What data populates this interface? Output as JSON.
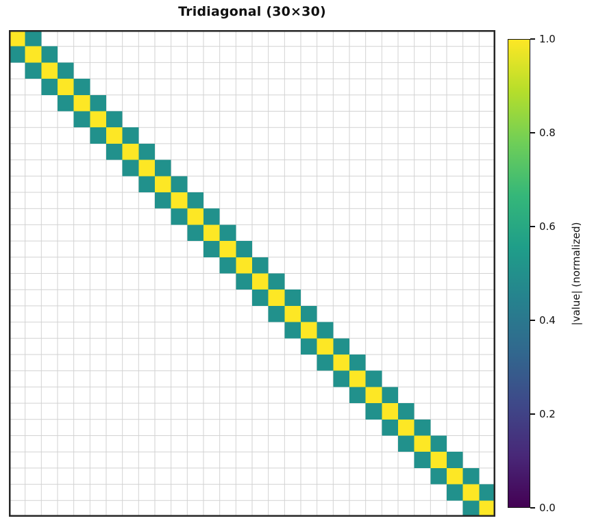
{
  "figure": {
    "background": "#ffffff"
  },
  "chart_data": {
    "type": "heatmap",
    "title": "Tridiagonal (30×30)",
    "matrix_size": 30,
    "pattern": "tridiagonal",
    "diagonal_value": 1.0,
    "off_diagonal_value": 0.5,
    "zero_cells": "masked (shown white)",
    "grid": true,
    "axis_tick_labels": false,
    "colormap": "viridis",
    "colorbar": {
      "label": "|value| (normalized)",
      "ticks": [
        "0.0",
        "0.2",
        "0.4",
        "0.6",
        "0.8",
        "1.0"
      ],
      "tick_values": [
        0.0,
        0.2,
        0.4,
        0.6,
        0.8,
        1.0
      ],
      "range": [
        0.0,
        1.0
      ],
      "position": "right"
    },
    "colors": {
      "diagonal": "#fde725",
      "off_diagonal": "#21918c",
      "masked": "#ffffff",
      "grid_line": "#d2d2d2",
      "spine": "#262626",
      "tick_color": "#111111",
      "viridis_stops": [
        "#440154",
        "#482878",
        "#3e4989",
        "#31688e",
        "#26828e",
        "#1f9e89",
        "#35b779",
        "#6ece58",
        "#b5de2b",
        "#fde725"
      ]
    }
  }
}
